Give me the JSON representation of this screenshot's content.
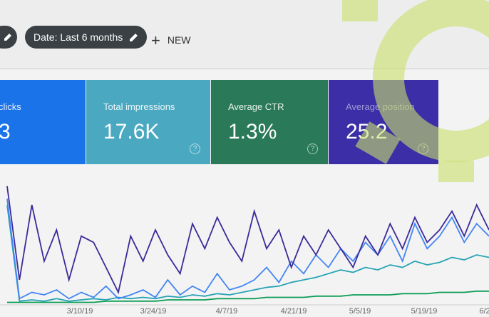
{
  "toolbar": {
    "date_filter": "Date: Last 6 months",
    "new_button": "NEW"
  },
  "cards": [
    {
      "label": "clicks",
      "value": "3"
    },
    {
      "label": "Total impressions",
      "value": "17.6K"
    },
    {
      "label": "Average CTR",
      "value": "1.3%"
    },
    {
      "label": "Average position",
      "value": "25.2"
    }
  ],
  "chart_data": {
    "type": "line",
    "x_tick_labels": [
      "3/10/19",
      "3/24/19",
      "4/7/19",
      "4/21/19",
      "5/5/19",
      "5/19/19",
      "6/2"
    ],
    "ylim": [
      0,
      100
    ],
    "series": [
      {
        "color": "#0f9d58",
        "values": [
          2,
          2,
          2,
          2,
          2,
          2,
          2,
          2,
          3,
          3,
          3,
          3,
          3,
          4,
          4,
          4,
          4,
          5,
          5,
          5,
          5,
          6,
          6,
          6,
          6,
          7,
          7,
          7,
          8,
          8,
          8,
          8,
          9,
          9,
          9,
          10,
          10,
          10,
          11,
          11
        ]
      },
      {
        "color": "#26a3b5",
        "values": [
          80,
          3,
          4,
          3,
          5,
          3,
          4,
          5,
          4,
          6,
          5,
          6,
          5,
          7,
          6,
          8,
          7,
          9,
          8,
          10,
          12,
          14,
          15,
          18,
          20,
          22,
          25,
          28,
          26,
          30,
          28,
          32,
          30,
          35,
          32,
          34,
          38,
          36,
          40,
          38
        ]
      },
      {
        "color": "#4285f4",
        "values": [
          85,
          5,
          10,
          8,
          12,
          5,
          10,
          6,
          15,
          5,
          8,
          12,
          6,
          20,
          8,
          15,
          10,
          25,
          12,
          15,
          20,
          30,
          18,
          35,
          25,
          40,
          30,
          45,
          35,
          50,
          40,
          55,
          35,
          65,
          45,
          55,
          70,
          50,
          65,
          55
        ]
      },
      {
        "color": "#3c2a98",
        "values": [
          95,
          20,
          80,
          35,
          60,
          20,
          55,
          50,
          30,
          10,
          55,
          35,
          60,
          40,
          25,
          65,
          45,
          70,
          50,
          35,
          75,
          45,
          60,
          30,
          55,
          40,
          60,
          45,
          30,
          55,
          40,
          65,
          45,
          70,
          50,
          60,
          75,
          55,
          80,
          60
        ]
      }
    ]
  }
}
